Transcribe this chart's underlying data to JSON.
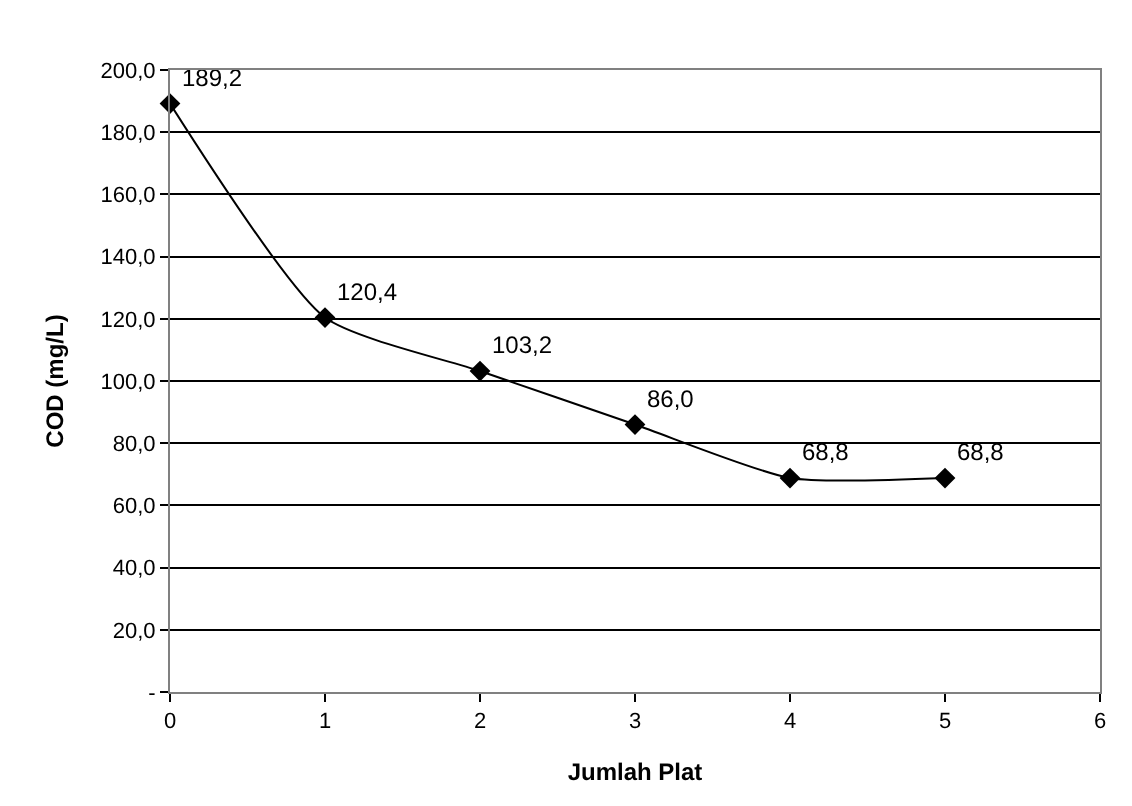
{
  "chart_data": {
    "type": "line",
    "xlabel": "Jumlah Plat",
    "ylabel": "COD (mg/L)",
    "x": [
      0,
      1,
      2,
      3,
      4,
      5
    ],
    "series": [
      {
        "color": "#000000",
        "values": [
          189.2,
          120.4,
          103.2,
          86.0,
          68.8,
          68.8
        ],
        "value_labels": [
          "189,2",
          "120,4",
          "103,2",
          "86,0",
          "68,8",
          "68,8"
        ]
      }
    ],
    "xlim": [
      0,
      6
    ],
    "xticks": [
      0,
      1,
      2,
      3,
      4,
      5,
      6
    ],
    "ylim": [
      0,
      200
    ],
    "yticks": [
      {
        "value": 0,
        "label": "-"
      },
      {
        "value": 20,
        "label": "20,0"
      },
      {
        "value": 40,
        "label": "40,0"
      },
      {
        "value": 60,
        "label": "60,0"
      },
      {
        "value": 80,
        "label": "80,0"
      },
      {
        "value": 100,
        "label": "100,0"
      },
      {
        "value": 120,
        "label": "120,0"
      },
      {
        "value": 140,
        "label": "140,0"
      },
      {
        "value": 160,
        "label": "160,0"
      },
      {
        "value": 180,
        "label": "180,0"
      },
      {
        "value": 200,
        "label": "200,0"
      }
    ],
    "grid": "y",
    "marker": "diamond",
    "line_style": "solid"
  }
}
